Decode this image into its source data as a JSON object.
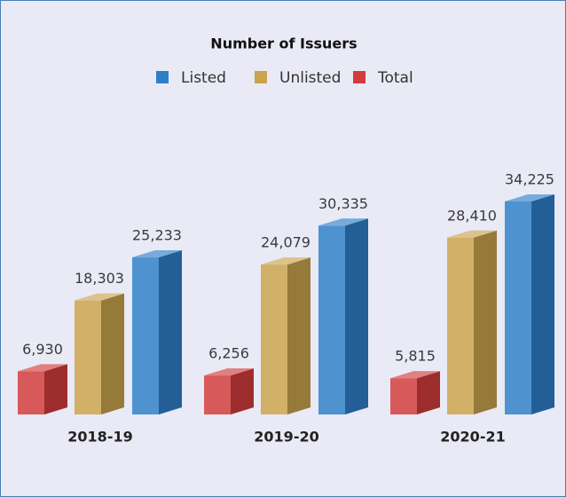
{
  "chart_data": {
    "type": "bar3d",
    "title": "Number of Issuers",
    "categories": [
      "2018-19",
      "2019-20",
      "2020-21"
    ],
    "series": [
      {
        "name": "Listed",
        "color": "#2f7fc8",
        "values": [
          25233,
          30335,
          34225
        ],
        "value_labels": [
          "25,233",
          "30,335",
          "34,225"
        ]
      },
      {
        "name": "Unlisted",
        "color": "#c9a34e",
        "values": [
          18303,
          24079,
          28410
        ],
        "value_labels": [
          "18,303",
          "24,079",
          "28,410"
        ]
      },
      {
        "name": "Total",
        "color": "#d23c3c",
        "values": [
          6930,
          6256,
          5815
        ],
        "value_labels": [
          "6,930",
          "6,256",
          "5,815"
        ]
      }
    ]
  }
}
